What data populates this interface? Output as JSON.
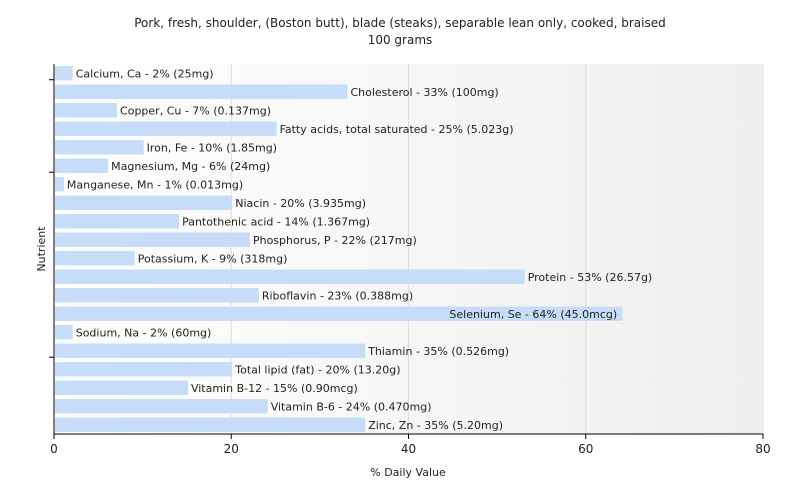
{
  "chart_data": {
    "type": "bar",
    "orientation": "horizontal",
    "title": "Pork, fresh, shoulder, (Boston butt), blade (steaks), separable lean only, cooked, braised",
    "subtitle": "100 grams",
    "xlabel": "% Daily Value",
    "ylabel": "Nutrient",
    "xlim": [
      0,
      80
    ],
    "xticks": [
      0,
      20,
      40,
      60,
      80
    ],
    "grid": true,
    "bar_color": "#c6dcf8",
    "categories": [
      "Calcium, Ca",
      "Cholesterol",
      "Copper, Cu",
      "Fatty acids, total saturated",
      "Iron, Fe",
      "Magnesium, Mg",
      "Manganese, Mn",
      "Niacin",
      "Pantothenic acid",
      "Phosphorus, P",
      "Potassium, K",
      "Protein",
      "Riboflavin",
      "Selenium, Se",
      "Sodium, Na",
      "Thiamin",
      "Total lipid (fat)",
      "Vitamin B-12",
      "Vitamin B-6",
      "Zinc, Zn"
    ],
    "values": [
      2,
      33,
      7,
      25,
      10,
      6,
      1,
      20,
      14,
      22,
      9,
      53,
      23,
      64,
      2,
      35,
      20,
      15,
      24,
      35
    ],
    "labels": [
      "Calcium, Ca - 2% (25mg)",
      "Cholesterol - 33% (100mg)",
      "Copper, Cu - 7% (0.137mg)",
      "Fatty acids, total saturated - 25% (5.023g)",
      "Iron, Fe - 10% (1.85mg)",
      "Magnesium, Mg - 6% (24mg)",
      "Manganese, Mn - 1% (0.013mg)",
      "Niacin - 20% (3.935mg)",
      "Pantothenic acid - 14% (1.367mg)",
      "Phosphorus, P - 22% (217mg)",
      "Potassium, K - 9% (318mg)",
      "Protein - 53% (26.57g)",
      "Riboflavin - 23% (0.388mg)",
      "Selenium, Se - 64% (45.0mcg)",
      "Sodium, Na - 2% (60mg)",
      "Thiamin - 35% (0.526mg)",
      "Total lipid (fat) - 20% (13.20g)",
      "Vitamin B-12 - 15% (0.90mcg)",
      "Vitamin B-6 - 24% (0.470mg)",
      "Zinc, Zn - 35% (5.20mg)"
    ]
  }
}
